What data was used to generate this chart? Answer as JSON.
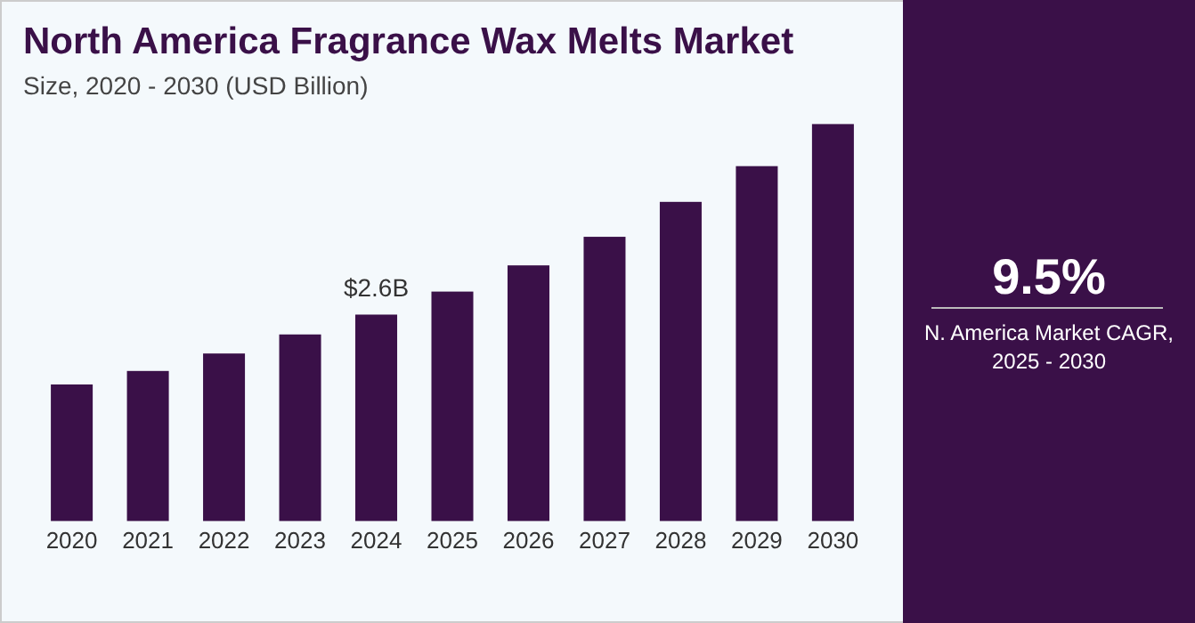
{
  "chart_data": {
    "type": "bar",
    "title": "North America Fragrance Wax Melts Market",
    "subtitle": "Size, 2020 - 2030 (USD Billion)",
    "categories": [
      "2020",
      "2021",
      "2022",
      "2023",
      "2024",
      "2025",
      "2026",
      "2027",
      "2028",
      "2029",
      "2030"
    ],
    "values": [
      1.72,
      1.89,
      2.11,
      2.35,
      2.6,
      2.89,
      3.22,
      3.58,
      4.02,
      4.47,
      5.0
    ],
    "value_labels": [
      null,
      null,
      null,
      null,
      "$2.6B",
      null,
      null,
      null,
      null,
      null,
      null
    ],
    "color": "#3a1048",
    "annotations": [
      "9.5%",
      "N. America Market CAGR, 2025 - 2030"
    ]
  }
}
